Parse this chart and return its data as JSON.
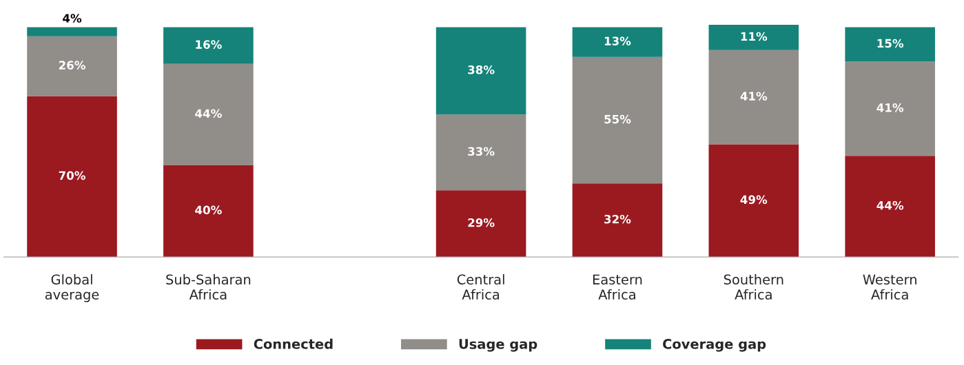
{
  "chart_data": {
    "type": "bar",
    "stacked": true,
    "legend": "bottom",
    "grid": false,
    "categories": [
      "Global\naverage",
      "Sub-Saharan\nAfrica",
      null,
      "Central\nAfrica",
      "Eastern\nAfrica",
      "Southern\nAfrica",
      "Western\nAfrica"
    ],
    "series": [
      {
        "name": "Connected",
        "color": "#9a1a20",
        "values": [
          70,
          40,
          null,
          29,
          32,
          49,
          44
        ],
        "value_labels": [
          "70%",
          "40%",
          null,
          "29%",
          "32%",
          "49%",
          "44%"
        ]
      },
      {
        "name": "Usage gap",
        "color": "#918d89",
        "values": [
          26,
          44,
          null,
          33,
          55,
          41,
          41
        ],
        "value_labels": [
          "26%",
          "44%",
          null,
          "33%",
          "55%",
          "41%",
          "41%"
        ]
      },
      {
        "name": "Coverage gap",
        "color": "#158379",
        "values": [
          4,
          16,
          null,
          38,
          13,
          11,
          15
        ],
        "value_labels": [
          "4%",
          "16%",
          null,
          "38%",
          "13%",
          "11%",
          "15%"
        ]
      }
    ]
  }
}
